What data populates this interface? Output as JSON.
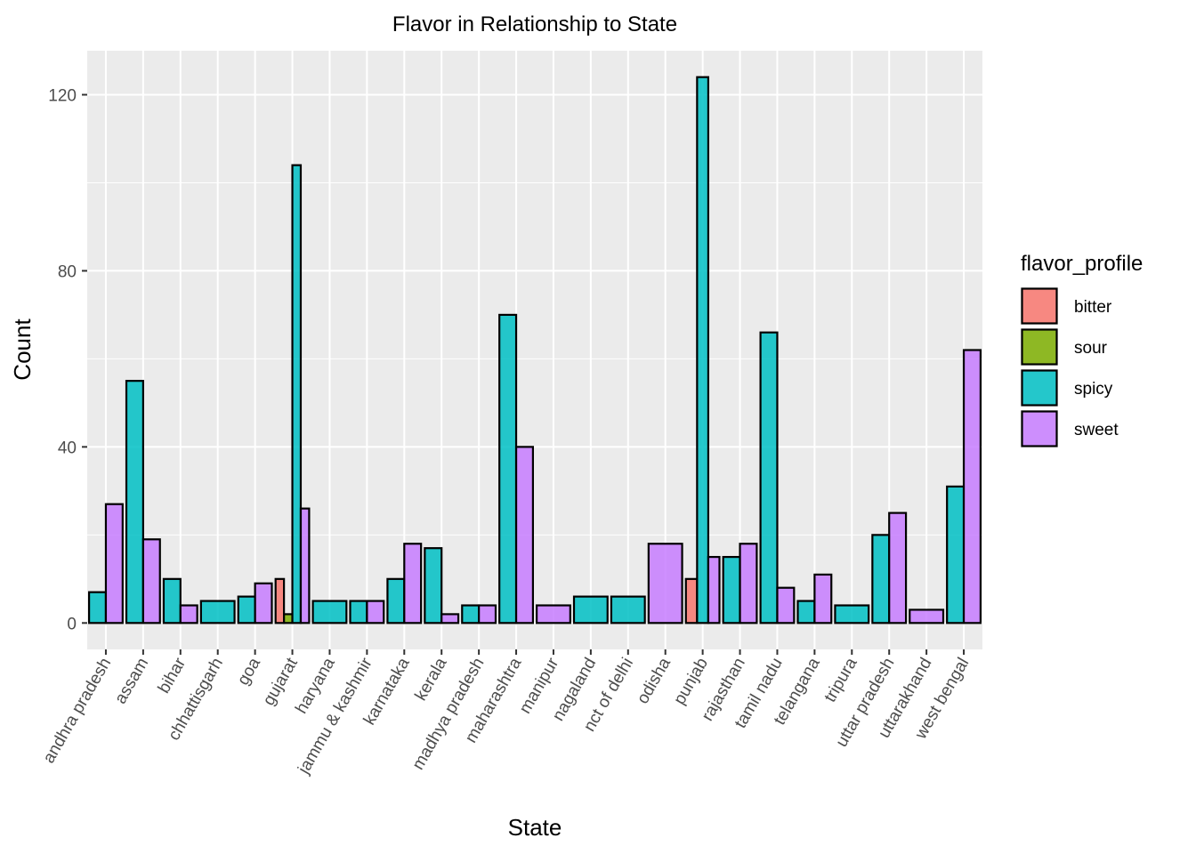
{
  "chart_data": {
    "type": "bar",
    "title": "Flavor in Relationship to State",
    "xlabel": "State",
    "ylabel": "Count",
    "ylim": [
      -6,
      130
    ],
    "yticks": [
      0,
      40,
      80,
      120
    ],
    "grid": true,
    "legend_position": "right",
    "legend_title": "flavor_profile",
    "categories": [
      "andhra pradesh",
      "assam",
      "bihar",
      "chhattisgarh",
      "goa",
      "gujarat",
      "haryana",
      "jammu & kashmir",
      "karnataka",
      "kerala",
      "madhya pradesh",
      "maharashtra",
      "manipur",
      "nagaland",
      "nct of delhi",
      "odisha",
      "punjab",
      "rajasthan",
      "tamil nadu",
      "telangana",
      "tripura",
      "uttar pradesh",
      "uttarakhand",
      "west bengal"
    ],
    "series": [
      {
        "name": "bitter",
        "color": "#F8766D",
        "values": [
          0,
          0,
          0,
          0,
          0,
          10,
          0,
          0,
          0,
          0,
          0,
          0,
          0,
          0,
          0,
          0,
          10,
          0,
          0,
          0,
          0,
          0,
          0,
          0
        ]
      },
      {
        "name": "sour",
        "color": "#7CAE00",
        "values": [
          0,
          0,
          0,
          0,
          0,
          2,
          0,
          0,
          0,
          0,
          0,
          0,
          0,
          0,
          0,
          0,
          0,
          0,
          0,
          0,
          0,
          0,
          0,
          0
        ]
      },
      {
        "name": "spicy",
        "color": "#00BFC4",
        "values": [
          7,
          55,
          10,
          5,
          6,
          104,
          5,
          5,
          10,
          17,
          4,
          70,
          0,
          6,
          6,
          0,
          124,
          15,
          66,
          5,
          4,
          20,
          0,
          31
        ]
      },
      {
        "name": "sweet",
        "color": "#C77CFF",
        "values": [
          27,
          19,
          4,
          0,
          9,
          26,
          0,
          5,
          18,
          2,
          4,
          40,
          4,
          0,
          0,
          18,
          15,
          18,
          8,
          11,
          0,
          25,
          3,
          62
        ]
      }
    ]
  }
}
